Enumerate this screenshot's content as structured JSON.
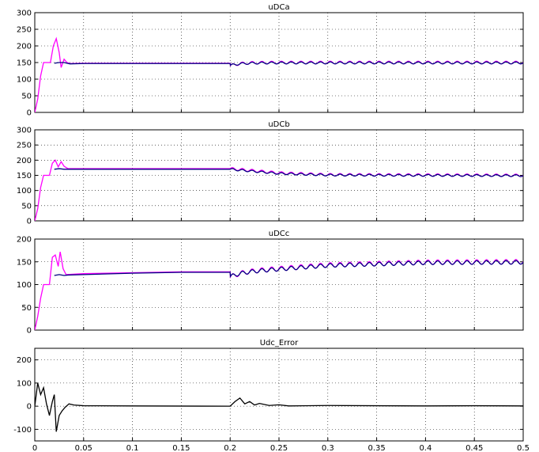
{
  "chart_data": [
    {
      "type": "line",
      "title": "uDCa",
      "xlim": [
        0,
        0.5
      ],
      "ylim": [
        0,
        300
      ],
      "yticks": [
        0,
        50,
        100,
        150,
        200,
        250,
        300
      ],
      "xticks": [],
      "grid": true,
      "series": [
        {
          "color": "#ff00ff",
          "points": [
            [
              0,
              0
            ],
            [
              0.003,
              40
            ],
            [
              0.006,
              110
            ],
            [
              0.009,
              150
            ],
            [
              0.012,
              150
            ],
            [
              0.016,
              150
            ],
            [
              0.019,
              200
            ],
            [
              0.022,
              222
            ],
            [
              0.025,
              180
            ],
            [
              0.027,
              135
            ],
            [
              0.03,
              160
            ],
            [
              0.033,
              150
            ],
            [
              0.036,
              147
            ],
            [
              0.05,
              148
            ],
            [
              0.1,
              148
            ],
            [
              0.15,
              148
            ],
            [
              0.2,
              148
            ]
          ],
          "osc": {
            "start": 0.2,
            "end": 0.5,
            "base": 150,
            "amp": 4,
            "period": 0.01,
            "jump": -10,
            "decay": 0.01
          }
        },
        {
          "color": "#000080",
          "points": [
            [
              0.02,
              148
            ],
            [
              0.025,
              150
            ],
            [
              0.03,
              150
            ],
            [
              0.036,
              146
            ],
            [
              0.05,
              147
            ],
            [
              0.1,
              147
            ],
            [
              0.15,
              147
            ],
            [
              0.2,
              147
            ]
          ],
          "osc": {
            "start": 0.2,
            "end": 0.5,
            "base": 149,
            "amp": 3,
            "period": 0.01,
            "jump": -8,
            "decay": 0.01
          }
        }
      ]
    },
    {
      "type": "line",
      "title": "uDCb",
      "xlim": [
        0,
        0.5
      ],
      "ylim": [
        0,
        300
      ],
      "yticks": [
        0,
        50,
        100,
        150,
        200,
        250,
        300
      ],
      "xticks": [],
      "grid": true,
      "series": [
        {
          "color": "#ff00ff",
          "points": [
            [
              0,
              0
            ],
            [
              0.003,
              40
            ],
            [
              0.006,
              110
            ],
            [
              0.009,
              150
            ],
            [
              0.012,
              150
            ],
            [
              0.015,
              150
            ],
            [
              0.018,
              190
            ],
            [
              0.021,
              200
            ],
            [
              0.024,
              178
            ],
            [
              0.027,
              195
            ],
            [
              0.03,
              180
            ],
            [
              0.034,
              172
            ],
            [
              0.05,
              172
            ],
            [
              0.1,
              172
            ],
            [
              0.15,
              172
            ],
            [
              0.2,
              172
            ]
          ],
          "osc": {
            "start": 0.2,
            "end": 0.5,
            "base": 150,
            "amp": 4,
            "period": 0.01,
            "jump": 0,
            "decay": 0.01,
            "trend": [
              [
                0.2,
                172
              ],
              [
                0.25,
                158
              ],
              [
                0.3,
                152
              ],
              [
                0.5,
                150
              ]
            ]
          }
        },
        {
          "color": "#000080",
          "points": [
            [
              0.02,
              170
            ],
            [
              0.025,
              172
            ],
            [
              0.03,
              170
            ],
            [
              0.034,
              170
            ],
            [
              0.05,
              170
            ],
            [
              0.1,
              170
            ],
            [
              0.15,
              170
            ],
            [
              0.2,
              170
            ]
          ],
          "osc": {
            "start": 0.2,
            "end": 0.5,
            "base": 149,
            "amp": 3,
            "period": 0.01,
            "jump": 0,
            "decay": 0.01,
            "trend": [
              [
                0.2,
                170
              ],
              [
                0.25,
                156
              ],
              [
                0.3,
                151
              ],
              [
                0.5,
                149
              ]
            ]
          }
        }
      ]
    },
    {
      "type": "line",
      "title": "uDCc",
      "xlim": [
        0,
        0.5
      ],
      "ylim": [
        0,
        200
      ],
      "yticks": [
        0,
        50,
        100,
        150,
        200
      ],
      "xticks": [],
      "grid": true,
      "series": [
        {
          "color": "#ff00ff",
          "points": [
            [
              0,
              0
            ],
            [
              0.003,
              30
            ],
            [
              0.006,
              70
            ],
            [
              0.009,
              100
            ],
            [
              0.012,
              100
            ],
            [
              0.015,
              100
            ],
            [
              0.018,
              160
            ],
            [
              0.021,
              165
            ],
            [
              0.024,
              140
            ],
            [
              0.026,
              172
            ],
            [
              0.029,
              135
            ],
            [
              0.032,
              122
            ],
            [
              0.05,
              124
            ],
            [
              0.1,
              126
            ],
            [
              0.15,
              128
            ],
            [
              0.2,
              128
            ]
          ],
          "osc": {
            "start": 0.2,
            "end": 0.5,
            "base": 150,
            "amp": 5,
            "period": 0.01,
            "jump": -12,
            "decay": 0.012,
            "trend": [
              [
                0.2,
                128
              ],
              [
                0.25,
                135
              ],
              [
                0.3,
                143
              ],
              [
                0.4,
                149
              ],
              [
                0.5,
                150
              ]
            ]
          }
        },
        {
          "color": "#000080",
          "points": [
            [
              0.02,
              120
            ],
            [
              0.025,
              122
            ],
            [
              0.03,
              120
            ],
            [
              0.034,
              121
            ],
            [
              0.05,
              122
            ],
            [
              0.1,
              125
            ],
            [
              0.15,
              127
            ],
            [
              0.2,
              127
            ]
          ],
          "osc": {
            "start": 0.2,
            "end": 0.5,
            "base": 149,
            "amp": 4,
            "period": 0.01,
            "jump": -10,
            "decay": 0.012,
            "trend": [
              [
                0.2,
                127
              ],
              [
                0.25,
                134
              ],
              [
                0.3,
                142
              ],
              [
                0.4,
                148
              ],
              [
                0.5,
                149
              ]
            ]
          }
        }
      ]
    },
    {
      "type": "line",
      "title": "Udc_Error",
      "xlim": [
        0,
        0.5
      ],
      "ylim": [
        -150,
        250
      ],
      "yticks": [
        -100,
        0,
        100,
        200
      ],
      "xticks": [
        0,
        0.05,
        0.1,
        0.15,
        0.2,
        0.25,
        0.3,
        0.35,
        0.4,
        0.45,
        0.5
      ],
      "grid": true,
      "series": [
        {
          "color": "#000000",
          "points": [
            [
              0,
              0
            ],
            [
              0.003,
              100
            ],
            [
              0.006,
              50
            ],
            [
              0.009,
              80
            ],
            [
              0.012,
              10
            ],
            [
              0.015,
              -40
            ],
            [
              0.018,
              20
            ],
            [
              0.02,
              50
            ],
            [
              0.022,
              -110
            ],
            [
              0.025,
              -40
            ],
            [
              0.028,
              -20
            ],
            [
              0.031,
              -5
            ],
            [
              0.035,
              10
            ],
            [
              0.04,
              5
            ],
            [
              0.05,
              2
            ],
            [
              0.1,
              1
            ],
            [
              0.2,
              0
            ],
            [
              0.205,
              20
            ],
            [
              0.21,
              35
            ],
            [
              0.215,
              10
            ],
            [
              0.22,
              20
            ],
            [
              0.225,
              5
            ],
            [
              0.23,
              12
            ],
            [
              0.24,
              3
            ],
            [
              0.25,
              6
            ],
            [
              0.26,
              1
            ],
            [
              0.3,
              3
            ],
            [
              0.35,
              2
            ],
            [
              0.4,
              1
            ],
            [
              0.45,
              2
            ],
            [
              0.5,
              1
            ]
          ]
        }
      ]
    }
  ]
}
